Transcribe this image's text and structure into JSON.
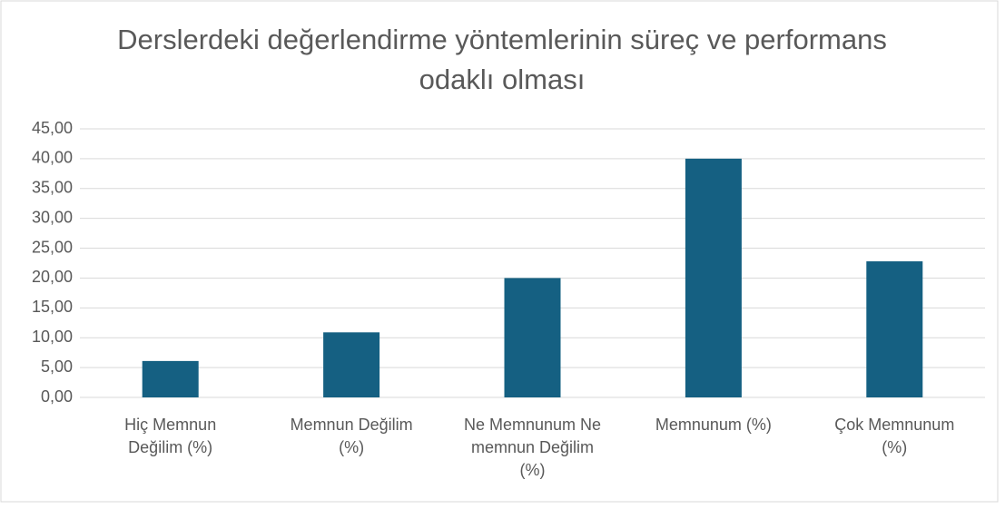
{
  "chart_data": {
    "type": "bar",
    "title": "Derslerdeki değerlendirme yöntemlerinin süreç ve performans odaklı olması",
    "categories": [
      "Hiç Memnun Değilim (%)",
      "Memnun Değilim (%)",
      "Ne Memnunum Ne memnun Değilim (%)",
      "Memnunum (%)",
      "Çok Memnunum (%)"
    ],
    "values": [
      6.1,
      10.9,
      20.0,
      40.0,
      22.8
    ],
    "color": "#156082",
    "ylim": [
      0,
      45
    ],
    "yticks": [
      {
        "value": 0,
        "label": "0,00"
      },
      {
        "value": 5,
        "label": "5,00"
      },
      {
        "value": 10,
        "label": "10,00"
      },
      {
        "value": 15,
        "label": "15,00"
      },
      {
        "value": 20,
        "label": "20,00"
      },
      {
        "value": 25,
        "label": "25,00"
      },
      {
        "value": 30,
        "label": "30,00"
      },
      {
        "value": 35,
        "label": "35,00"
      },
      {
        "value": 40,
        "label": "40,00"
      },
      {
        "value": 45,
        "label": "45,00"
      }
    ],
    "grid": true
  }
}
